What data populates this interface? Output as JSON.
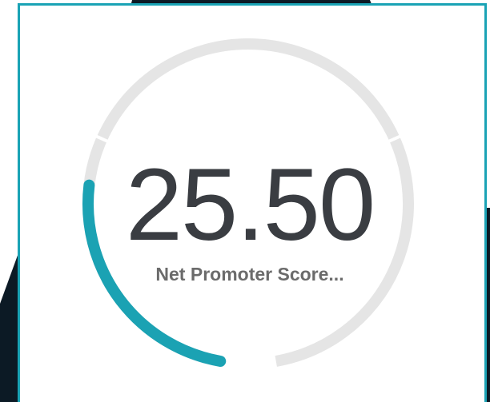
{
  "chart_data": {
    "type": "gauge",
    "label": "Net Promoter Score...",
    "values": [
      25.5
    ],
    "value_labels": [
      "25.50"
    ],
    "ylim": [
      0,
      100
    ],
    "color": "#1ba2b3",
    "track_color": "#e5e5e5"
  }
}
